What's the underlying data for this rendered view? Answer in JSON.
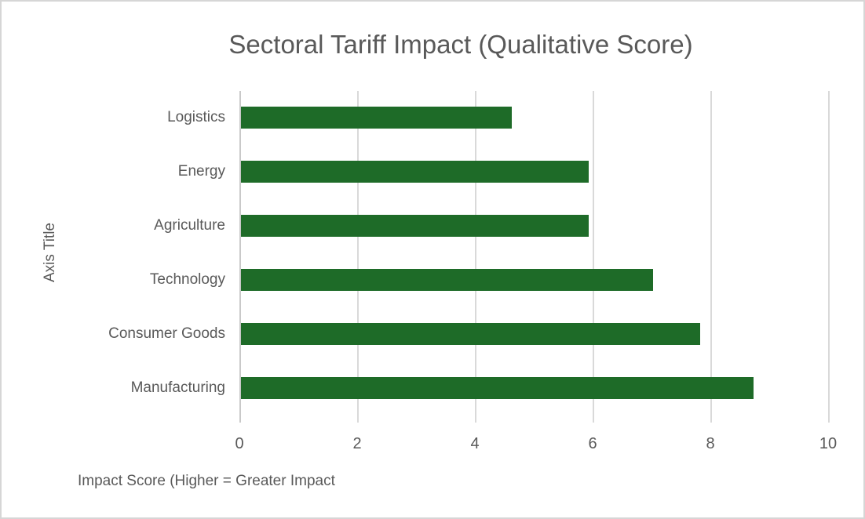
{
  "chart_data": {
    "type": "bar",
    "orientation": "horizontal",
    "title": "Sectoral Tariff Impact (Qualitative Score)",
    "categories": [
      "Logistics",
      "Energy",
      "Agriculture",
      "Technology",
      "Consumer Goods",
      "Manufacturing"
    ],
    "categories_order": "top-to-bottom",
    "values": [
      4.6,
      5.9,
      5.9,
      7.0,
      7.8,
      8.7
    ],
    "xlabel": "Impact Score (Higher = Greater Impact",
    "ylabel": "Axis Title",
    "xlim": [
      0,
      10
    ],
    "x_ticks": [
      0,
      2,
      4,
      6,
      8,
      10
    ],
    "grid": "vertical-only",
    "legend": "none",
    "bar_color": "#1E6B28",
    "text_color": "#595959",
    "gridline_color": "#D9D9D9",
    "axis_line_color": "#C9C9C9",
    "frame_border_color": "#D6D6D6",
    "background_color": "#FFFFFF"
  }
}
